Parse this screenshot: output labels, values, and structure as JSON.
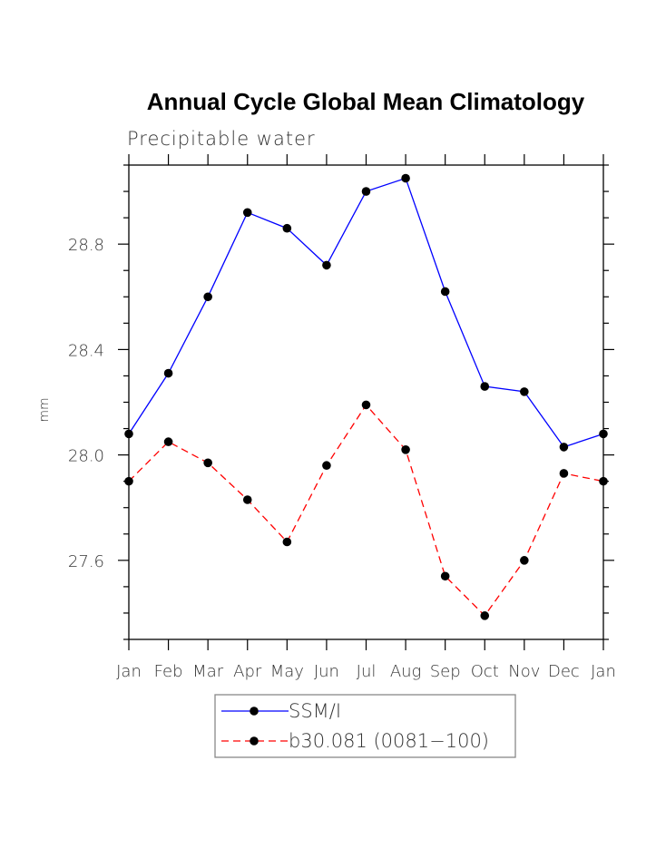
{
  "chart_data": {
    "type": "line",
    "title": "Annual Cycle Global Mean Climatology",
    "subtitle": "Precipitable water",
    "ylabel": "mm",
    "xlabel": "",
    "categories": [
      "Jan",
      "Feb",
      "Mar",
      "Apr",
      "May",
      "Jun",
      "Jul",
      "Aug",
      "Sep",
      "Oct",
      "Nov",
      "Dec",
      "Jan"
    ],
    "ylim": [
      27.3,
      29.1
    ],
    "yticks": [
      "27.6",
      "28.0",
      "28.4",
      "28.8"
    ],
    "grid": false,
    "legend_position": "bottom-center",
    "series": [
      {
        "name": "SSM/I",
        "color": "#0000ff",
        "dash": "solid",
        "values": [
          28.08,
          28.31,
          28.6,
          28.92,
          28.86,
          28.72,
          29.0,
          29.05,
          28.62,
          28.26,
          28.24,
          28.03,
          28.08
        ]
      },
      {
        "name": "b30.081 (0081−100)",
        "color": "#ff0000",
        "dash": "dashed",
        "values": [
          27.9,
          28.05,
          27.97,
          27.83,
          27.67,
          27.96,
          28.19,
          28.02,
          27.54,
          27.39,
          27.6,
          27.93,
          27.9
        ]
      }
    ]
  }
}
